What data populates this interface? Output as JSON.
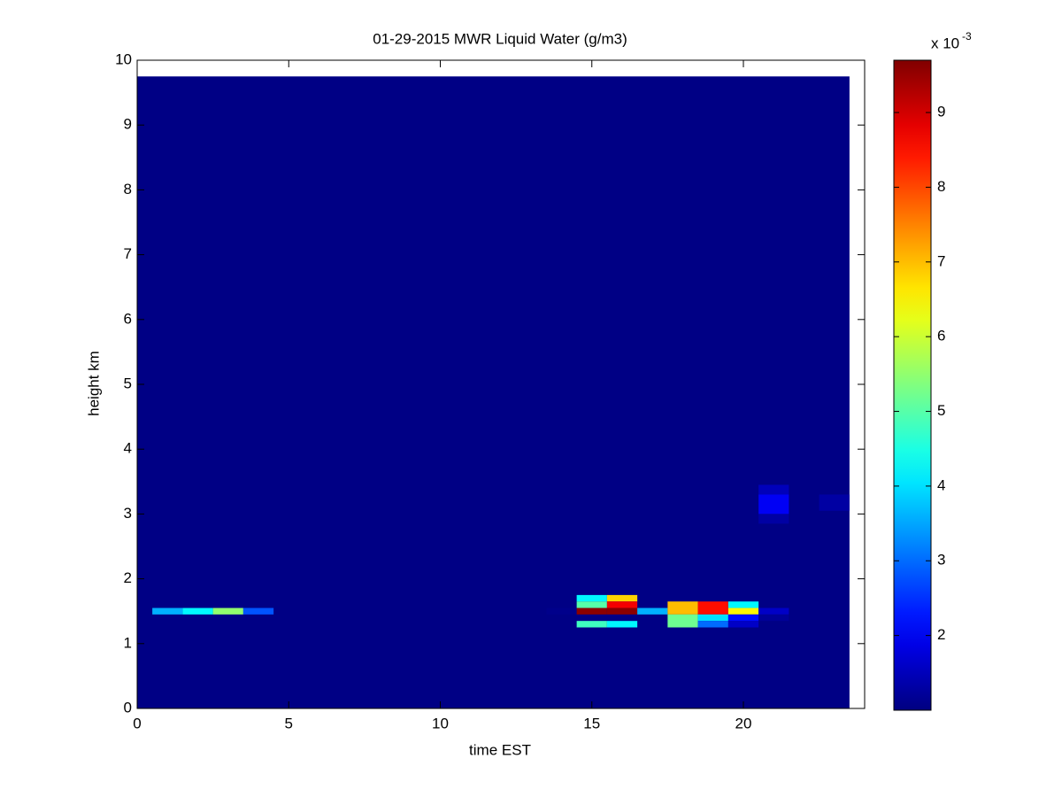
{
  "chart_data": {
    "type": "heatmap",
    "title": "01-29-2015 MWR Liquid Water (g/m3)",
    "x_label": "time EST",
    "y_label": "height km",
    "xlim": [
      0,
      24
    ],
    "ylim": [
      0,
      10
    ],
    "xticks": [
      0,
      5,
      10,
      15,
      20
    ],
    "yticks": [
      0,
      1,
      2,
      3,
      4,
      5,
      6,
      7,
      8,
      9,
      10
    ],
    "colormap": "jet",
    "colorbar": {
      "clim": [
        1.0,
        9.7
      ],
      "ticks": [
        2,
        3,
        4,
        5,
        6,
        7,
        8,
        9
      ],
      "multiplier": "x 10",
      "exponent": "-3"
    },
    "cells": [
      {
        "x": [
          0,
          23.5
        ],
        "y": [
          0,
          9.75
        ],
        "value": 1.05
      },
      {
        "x": [
          0.5,
          1.5
        ],
        "y": [
          1.45,
          1.55
        ],
        "value": 3.6
      },
      {
        "x": [
          1.5,
          2.5
        ],
        "y": [
          1.45,
          1.55
        ],
        "value": 4.2
      },
      {
        "x": [
          2.5,
          3.5
        ],
        "y": [
          1.45,
          1.55
        ],
        "value": 5.5
      },
      {
        "x": [
          3.5,
          4.5
        ],
        "y": [
          1.45,
          1.55
        ],
        "value": 2.8
      },
      {
        "x": [
          13.5,
          14.5
        ],
        "y": [
          1.45,
          1.55
        ],
        "value": 1.1
      },
      {
        "x": [
          14.5,
          15.5
        ],
        "y": [
          1.65,
          1.75
        ],
        "value": 4.2
      },
      {
        "x": [
          14.5,
          15.5
        ],
        "y": [
          1.55,
          1.65
        ],
        "value": 5.0
      },
      {
        "x": [
          14.5,
          15.5
        ],
        "y": [
          1.45,
          1.55
        ],
        "value": 9.6
      },
      {
        "x": [
          14.5,
          15.5
        ],
        "y": [
          1.25,
          1.35
        ],
        "value": 4.8
      },
      {
        "x": [
          15.5,
          16.5
        ],
        "y": [
          1.65,
          1.75
        ],
        "value": 6.8
      },
      {
        "x": [
          15.5,
          16.5
        ],
        "y": [
          1.55,
          1.65
        ],
        "value": 8.7
      },
      {
        "x": [
          15.5,
          16.5
        ],
        "y": [
          1.45,
          1.55
        ],
        "value": 9.6
      },
      {
        "x": [
          15.5,
          16.5
        ],
        "y": [
          1.25,
          1.35
        ],
        "value": 4.2
      },
      {
        "x": [
          16.5,
          17.5
        ],
        "y": [
          1.45,
          1.55
        ],
        "value": 3.6
      },
      {
        "x": [
          17.5,
          18.5
        ],
        "y": [
          1.45,
          1.65
        ],
        "value": 7.0
      },
      {
        "x": [
          17.5,
          18.5
        ],
        "y": [
          1.25,
          1.45
        ],
        "value": 5.2
      },
      {
        "x": [
          18.5,
          19.5
        ],
        "y": [
          1.45,
          1.65
        ],
        "value": 8.5
      },
      {
        "x": [
          18.5,
          19.5
        ],
        "y": [
          1.35,
          1.45
        ],
        "value": 4.0
      },
      {
        "x": [
          18.5,
          19.5
        ],
        "y": [
          1.25,
          1.35
        ],
        "value": 3.0
      },
      {
        "x": [
          19.5,
          20.5
        ],
        "y": [
          1.55,
          1.65
        ],
        "value": 4.2
      },
      {
        "x": [
          19.5,
          20.5
        ],
        "y": [
          1.45,
          1.55
        ],
        "value": 6.5
      },
      {
        "x": [
          19.5,
          20.5
        ],
        "y": [
          1.35,
          1.45
        ],
        "value": 2.2
      },
      {
        "x": [
          19.5,
          20.5
        ],
        "y": [
          1.25,
          1.35
        ],
        "value": 1.6
      },
      {
        "x": [
          20.5,
          21.5
        ],
        "y": [
          1.45,
          1.55
        ],
        "value": 1.6
      },
      {
        "x": [
          20.5,
          21.5
        ],
        "y": [
          1.35,
          1.45
        ],
        "value": 1.2
      },
      {
        "x": [
          20.5,
          21.5
        ],
        "y": [
          3.3,
          3.45
        ],
        "value": 1.5
      },
      {
        "x": [
          20.5,
          21.5
        ],
        "y": [
          3.0,
          3.3
        ],
        "value": 2.0
      },
      {
        "x": [
          20.5,
          21.5
        ],
        "y": [
          2.85,
          3.0
        ],
        "value": 1.3
      },
      {
        "x": [
          22.5,
          23.5
        ],
        "y": [
          3.05,
          3.3
        ],
        "value": 1.3
      }
    ]
  }
}
